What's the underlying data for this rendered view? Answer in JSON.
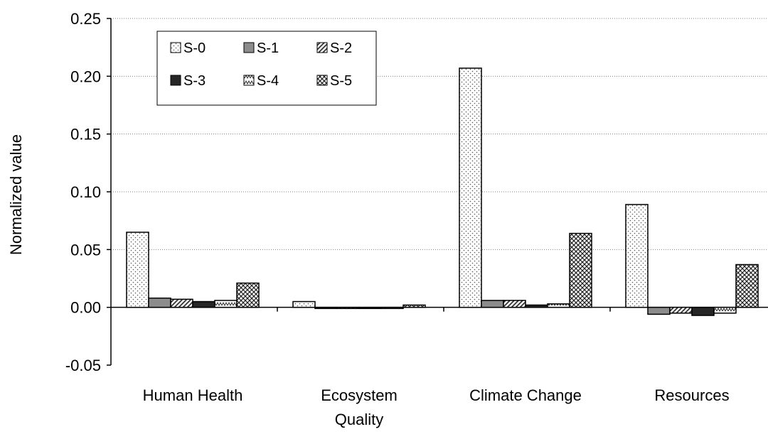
{
  "chart_data": {
    "type": "bar",
    "title": "",
    "xlabel": "",
    "ylabel": "Normalized value",
    "ylim": [
      -0.05,
      0.25
    ],
    "yticks": [
      "-0.05",
      "0.00",
      "0.05",
      "0.10",
      "0.15",
      "0.20",
      "0.25"
    ],
    "grid": true,
    "legend_position": "top-left",
    "categories": [
      "Human Health",
      "Ecosystem Quality",
      "Climate Change",
      "Resources"
    ],
    "series": [
      {
        "name": "S-0",
        "pattern": "dots",
        "values": [
          0.065,
          0.005,
          0.207,
          0.089
        ]
      },
      {
        "name": "S-1",
        "pattern": "solid-gray",
        "values": [
          0.008,
          -0.001,
          0.006,
          -0.006
        ]
      },
      {
        "name": "S-2",
        "pattern": "diagonal-hatch",
        "values": [
          0.007,
          -0.001,
          0.006,
          -0.005
        ]
      },
      {
        "name": "S-3",
        "pattern": "solid-black",
        "values": [
          0.005,
          -0.001,
          0.002,
          -0.007
        ]
      },
      {
        "name": "S-4",
        "pattern": "zigzag",
        "values": [
          0.006,
          -0.001,
          0.003,
          -0.005
        ]
      },
      {
        "name": "S-5",
        "pattern": "crosshatch",
        "values": [
          0.021,
          0.002,
          0.064,
          0.037
        ]
      }
    ],
    "colors": {
      "axis": "#000000",
      "grid": "#808080",
      "solid_gray": "#8c8c8c",
      "solid_black": "#262626"
    }
  }
}
